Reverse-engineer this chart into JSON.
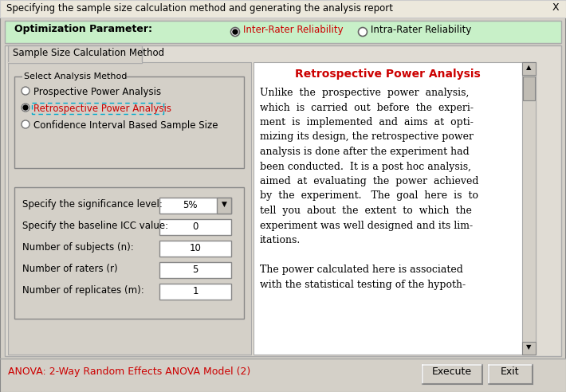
{
  "title": "Specifying the sample size calculation method and generating the analysis report",
  "bg_color": "#d4d0c8",
  "opt_param_bg": "#c8f0c8",
  "opt_param_label": "Optimization Parameter:",
  "radio1_label": "Inter-Rater Reliability",
  "radio2_label": "Intra-Rater Reliability",
  "tab_label": "Sample Size Calculation Method",
  "group_label": "Select Analysis Method",
  "analysis_options": [
    "Prospective Power Analysis",
    "Retrospective Power Analysis",
    "Confidence Interval Based Sample Size"
  ],
  "selected_analysis": 1,
  "fields": [
    {
      "label": "Specify the significance level:",
      "value": "5%",
      "is_dropdown": true
    },
    {
      "label": "Specify the baseline ICC value:",
      "value": "0",
      "is_dropdown": false
    },
    {
      "label": "Number of subjects (n):",
      "value": "10",
      "is_dropdown": false
    },
    {
      "label": "Number of raters (r)",
      "value": "5",
      "is_dropdown": false
    },
    {
      "label": "Number of replicates (m):",
      "value": "1",
      "is_dropdown": false
    }
  ],
  "right_title": "Retrospective Power Analysis",
  "right_text_lines": [
    "Unlike  the  prospective  power  analysis,",
    "which  is  carried  out  before  the  experi-",
    "ment  is  implemented  and  aims  at  opti-",
    "mizing its design, the retrospective power",
    "analysis is done after the experiment had",
    "been conducted.  It is a post hoc analysis,",
    "aimed  at  evaluating  the  power  achieved",
    "by  the  experiment.   The  goal  here  is  to",
    "tell  you  about  the  extent  to  which  the",
    "experiment was well designed and its lim-",
    "itations.",
    "",
    "The power calculated here is associated",
    "with the statistical testing of the hypoth-"
  ],
  "bottom_label": "ANOVA: 2-Way Random Effects ANOVA Model (2)",
  "btn_execute": "Execute",
  "btn_exit": "Exit"
}
